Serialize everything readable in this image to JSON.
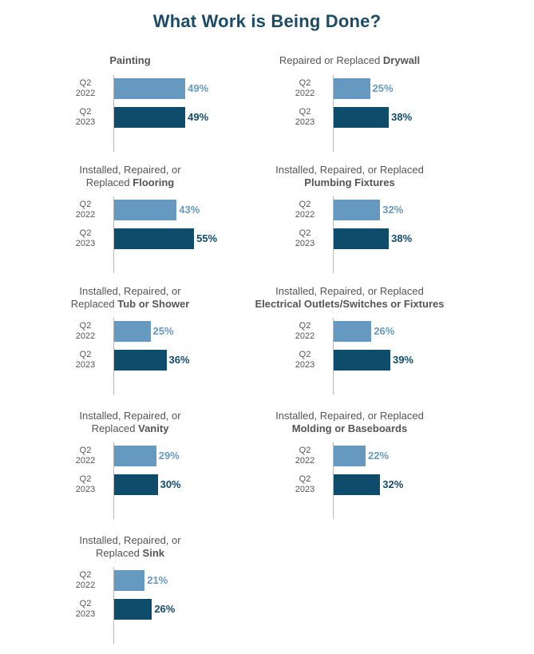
{
  "title": "What Work is Being Done?",
  "colors": {
    "title": "#1b4b66",
    "bar_2022": "#6699bf",
    "bar_2023": "#0f4b6b",
    "text": "#555555"
  },
  "row_labels": [
    {
      "line1": "Q2",
      "line2": "2022"
    },
    {
      "line1": "Q2",
      "line2": "2023"
    }
  ],
  "chart_data": [
    {
      "type": "bar",
      "title_lines": [
        {
          "normal": "",
          "bold": "Painting"
        }
      ],
      "categories": [
        "Q2 2022",
        "Q2 2023"
      ],
      "values": [
        49,
        49
      ],
      "value_labels": [
        "49%",
        "49%"
      ],
      "xlim": [
        0,
        100
      ]
    },
    {
      "type": "bar",
      "title_lines": [
        {
          "normal": "Repaired or Replaced ",
          "bold": "Drywall"
        }
      ],
      "categories": [
        "Q2 2022",
        "Q2 2023"
      ],
      "values": [
        25,
        38
      ],
      "value_labels": [
        "25%",
        "38%"
      ],
      "xlim": [
        0,
        100
      ]
    },
    {
      "type": "bar",
      "title_lines": [
        {
          "normal": "Installed, Repaired, or",
          "bold": ""
        },
        {
          "normal": "Replaced ",
          "bold": "Flooring"
        }
      ],
      "categories": [
        "Q2 2022",
        "Q2 2023"
      ],
      "values": [
        43,
        55
      ],
      "value_labels": [
        "43%",
        "55%"
      ],
      "xlim": [
        0,
        100
      ]
    },
    {
      "type": "bar",
      "title_lines": [
        {
          "normal": "Installed, Repaired, or Replaced",
          "bold": ""
        },
        {
          "normal": "",
          "bold": "Plumbing Fixtures"
        }
      ],
      "categories": [
        "Q2 2022",
        "Q2 2023"
      ],
      "values": [
        32,
        38
      ],
      "value_labels": [
        "32%",
        "38%"
      ],
      "xlim": [
        0,
        100
      ]
    },
    {
      "type": "bar",
      "title_lines": [
        {
          "normal": "Installed, Repaired, or",
          "bold": ""
        },
        {
          "normal": "Replaced ",
          "bold": "Tub or Shower"
        }
      ],
      "categories": [
        "Q2 2022",
        "Q2 2023"
      ],
      "values": [
        25,
        36
      ],
      "value_labels": [
        "25%",
        "36%"
      ],
      "xlim": [
        0,
        100
      ]
    },
    {
      "type": "bar",
      "title_lines": [
        {
          "normal": "Installed, Repaired, or Replaced",
          "bold": ""
        },
        {
          "normal": "",
          "bold": "Electrical Outlets/Switches or Fixtures"
        }
      ],
      "categories": [
        "Q2 2022",
        "Q2 2023"
      ],
      "values": [
        26,
        39
      ],
      "value_labels": [
        "26%",
        "39%"
      ],
      "xlim": [
        0,
        100
      ]
    },
    {
      "type": "bar",
      "title_lines": [
        {
          "normal": "Installed, Repaired, or",
          "bold": ""
        },
        {
          "normal": "Replaced ",
          "bold": "Vanity"
        }
      ],
      "categories": [
        "Q2 2022",
        "Q2 2023"
      ],
      "values": [
        29,
        30
      ],
      "value_labels": [
        "29%",
        "30%"
      ],
      "xlim": [
        0,
        100
      ]
    },
    {
      "type": "bar",
      "title_lines": [
        {
          "normal": "Installed, Repaired, or Replaced",
          "bold": ""
        },
        {
          "normal": "",
          "bold": "Molding or Baseboards"
        }
      ],
      "categories": [
        "Q2 2022",
        "Q2 2023"
      ],
      "values": [
        22,
        32
      ],
      "value_labels": [
        "22%",
        "32%"
      ],
      "xlim": [
        0,
        100
      ]
    },
    {
      "type": "bar",
      "title_lines": [
        {
          "normal": "Installed, Repaired, or",
          "bold": ""
        },
        {
          "normal": "Replaced ",
          "bold": "Sink"
        }
      ],
      "categories": [
        "Q2 2022",
        "Q2 2023"
      ],
      "values": [
        21,
        26
      ],
      "value_labels": [
        "21%",
        "26%"
      ],
      "xlim": [
        0,
        100
      ]
    }
  ]
}
